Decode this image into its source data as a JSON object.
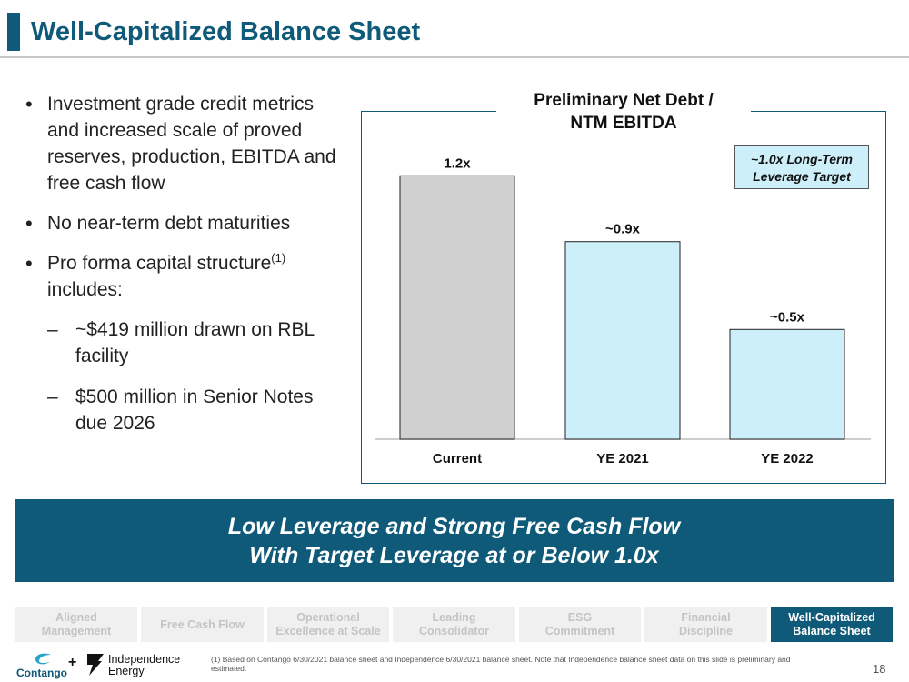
{
  "header": {
    "title": "Well-Capitalized Balance Sheet"
  },
  "bullets": [
    {
      "text": "Investment grade credit metrics and increased scale of proved reserves, production, EBITDA and free cash flow"
    },
    {
      "text": "No near-term debt maturities"
    },
    {
      "text": "Pro forma capital structure",
      "sup": "(1)",
      "tail": "includes:"
    }
  ],
  "sub_bullets": [
    {
      "text": "~$419 million drawn on RBL facility"
    },
    {
      "text": "$500 million in Senior Notes due 2026"
    }
  ],
  "chart_title_line1": "Preliminary Net Debt /",
  "chart_title_line2": "NTM EBITDA",
  "target_line1": "~1.0x Long-Term",
  "target_line2": "Leverage Target",
  "chart_data": {
    "type": "bar",
    "title": "Preliminary Net Debt / NTM EBITDA",
    "categories": [
      "Current",
      "YE 2021",
      "YE 2022"
    ],
    "values": [
      1.2,
      0.9,
      0.5
    ],
    "data_labels": [
      "1.2x",
      "~0.9x",
      "~0.5x"
    ],
    "colors": [
      "#d0d0d0",
      "#cdeff9",
      "#cdeff9"
    ],
    "ylim": [
      0,
      1.4
    ],
    "xlabel": "",
    "ylabel": "",
    "grid": false,
    "annotation": "~1.0x Long-Term Leverage Target"
  },
  "banner": {
    "line1": "Low Leverage and Strong Free Cash Flow",
    "line2": "With Target Leverage at or Below 1.0x"
  },
  "nav": [
    {
      "line1": "Aligned",
      "line2": "Management",
      "active": false
    },
    {
      "line1": "Free Cash Flow",
      "line2": "",
      "active": false
    },
    {
      "line1": "Operational",
      "line2": "Excellence at Scale",
      "active": false
    },
    {
      "line1": "Leading",
      "line2": "Consolidator",
      "active": false
    },
    {
      "line1": "ESG",
      "line2": "Commitment",
      "active": false
    },
    {
      "line1": "Financial",
      "line2": "Discipline",
      "active": false
    },
    {
      "line1": "Well-Capitalized",
      "line2": "Balance Sheet",
      "active": true
    }
  ],
  "footer": {
    "logo1": "Contango",
    "plus": "+",
    "logo2_line1": "Independence",
    "logo2_line2": "Energy",
    "footnote": "(1)  Based on Contango 6/30/2021 balance sheet and Independence 6/30/2021 balance sheet. Note that Independence balance sheet data on this slide is preliminary and estimated.",
    "page_number": "18"
  },
  "colors": {
    "brand": "#0e5a78",
    "bar_current": "#d0d0d0",
    "bar_future": "#cdeff9"
  }
}
